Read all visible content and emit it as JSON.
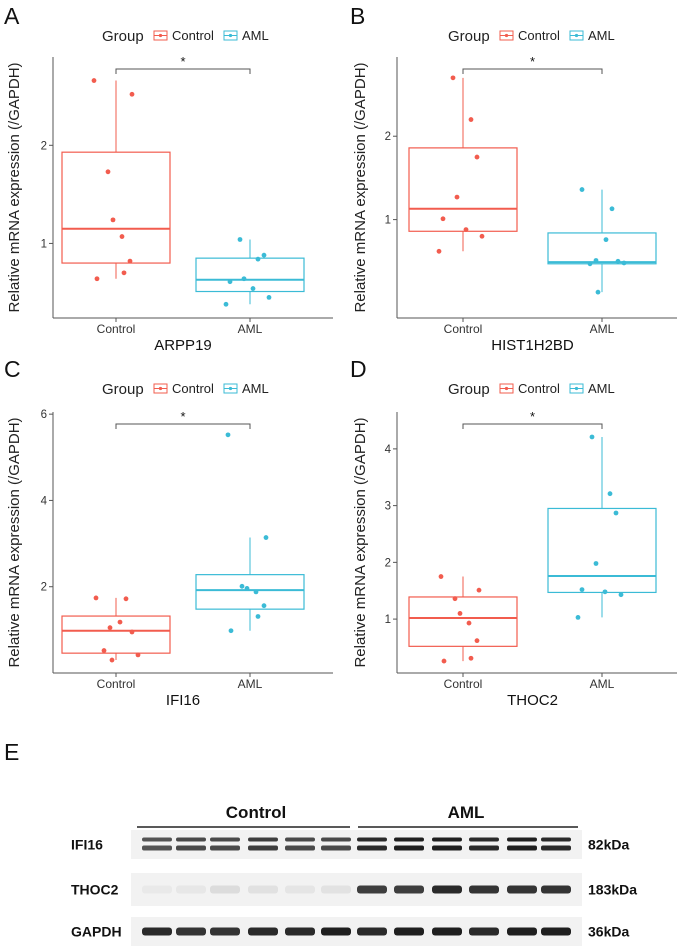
{
  "colors": {
    "control": "#F25C4E",
    "aml": "#3BBBD6",
    "axis": "#555555",
    "band": "#1f1f1f"
  },
  "legend": {
    "title": "Group",
    "entries": [
      "Control",
      "AML"
    ]
  },
  "chart_data": [
    {
      "letter": "A",
      "type": "box",
      "xlabel": "ARPP19",
      "ylabel": "Relative mRNA expression (/GAPDH)",
      "categories": [
        "Control",
        "AML"
      ],
      "ylim": [
        0.24,
        2.9
      ],
      "yticks": [
        1,
        2
      ],
      "significance": "*",
      "series": [
        {
          "name": "Control",
          "values": [
            2.66,
            2.52,
            1.73,
            1.24,
            1.07,
            0.82,
            0.7,
            0.64
          ],
          "box": {
            "q1": 0.8,
            "median": 1.15,
            "q3": 1.93,
            "whisker_low": 0.64,
            "whisker_high": 2.66
          }
        },
        {
          "name": "AML",
          "values": [
            1.04,
            0.84,
            0.88,
            0.64,
            0.61,
            0.54,
            0.45,
            0.38
          ],
          "box": {
            "q1": 0.51,
            "median": 0.63,
            "q3": 0.85,
            "whisker_low": 0.38,
            "whisker_high": 1.04
          }
        }
      ]
    },
    {
      "letter": "B",
      "type": "box",
      "xlabel": "HIST1H2BD",
      "ylabel": "Relative mRNA expression (/GAPDH)",
      "categories": [
        "Control",
        "AML"
      ],
      "ylim": [
        -0.18,
        2.95
      ],
      "yticks": [
        1,
        2
      ],
      "significance": "*",
      "series": [
        {
          "name": "Control",
          "values": [
            2.7,
            2.2,
            1.75,
            1.27,
            1.01,
            0.88,
            0.8,
            0.62
          ],
          "box": {
            "q1": 0.86,
            "median": 1.13,
            "q3": 1.86,
            "whisker_low": 0.62,
            "whisker_high": 2.7
          }
        },
        {
          "name": "AML",
          "values": [
            1.36,
            1.13,
            0.76,
            0.51,
            0.5,
            0.47,
            0.48,
            0.13
          ],
          "box": {
            "q1": 0.47,
            "median": 0.49,
            "q3": 0.84,
            "whisker_low": 0.13,
            "whisker_high": 1.36
          }
        }
      ]
    },
    {
      "letter": "C",
      "type": "box",
      "xlabel": "IFI16",
      "ylabel": "Relative mRNA expression (/GAPDH)",
      "categories": [
        "Control",
        "AML"
      ],
      "ylim": [
        0,
        6.05
      ],
      "yticks": [
        2,
        4,
        6
      ],
      "significance": "*",
      "series": [
        {
          "name": "Control",
          "values": [
            1.74,
            1.72,
            1.18,
            1.05,
            0.95,
            0.52,
            0.42,
            0.3
          ],
          "box": {
            "q1": 0.46,
            "median": 0.98,
            "q3": 1.32,
            "whisker_low": 0.3,
            "whisker_high": 1.74
          }
        },
        {
          "name": "AML",
          "values": [
            5.52,
            3.14,
            2.01,
            1.96,
            1.88,
            1.56,
            1.31,
            0.98
          ],
          "box": {
            "q1": 1.48,
            "median": 1.92,
            "q3": 2.28,
            "whisker_low": 0.98,
            "whisker_high": 3.14
          }
        }
      ]
    },
    {
      "letter": "D",
      "type": "box",
      "xlabel": "THOC2",
      "ylabel": "Relative mRNA expression (/GAPDH)",
      "categories": [
        "Control",
        "AML"
      ],
      "ylim": [
        0.05,
        4.65
      ],
      "yticks": [
        1,
        2,
        3,
        4
      ],
      "significance": "*",
      "series": [
        {
          "name": "Control",
          "values": [
            1.75,
            1.51,
            1.36,
            1.1,
            0.93,
            0.62,
            0.31,
            0.26
          ],
          "box": {
            "q1": 0.52,
            "median": 1.02,
            "q3": 1.39,
            "whisker_low": 0.26,
            "whisker_high": 1.75
          }
        },
        {
          "name": "AML",
          "values": [
            4.21,
            3.21,
            2.87,
            1.98,
            1.52,
            1.48,
            1.43,
            1.03
          ],
          "box": {
            "q1": 1.47,
            "median": 1.76,
            "q3": 2.95,
            "whisker_low": 1.03,
            "whisker_high": 4.21
          }
        }
      ]
    }
  ],
  "blot": {
    "letter": "E",
    "groups": [
      "Control",
      "AML"
    ],
    "rows": [
      {
        "protein": "IFI16",
        "size": "82kDa",
        "intensity": [
          0.75,
          0.8,
          0.8,
          0.85,
          0.8,
          0.8,
          0.95,
          1.0,
          1.0,
          0.95,
          1.0,
          0.95
        ]
      },
      {
        "protein": "THOC2",
        "size": "183kDa",
        "intensity": [
          0.04,
          0.05,
          0.1,
          0.08,
          0.06,
          0.07,
          0.85,
          0.85,
          0.95,
          0.9,
          0.9,
          0.9
        ]
      },
      {
        "protein": "GAPDH",
        "size": "36kDa",
        "intensity": [
          0.95,
          0.9,
          0.9,
          0.95,
          0.95,
          1.0,
          0.95,
          1.0,
          1.0,
          0.95,
          1.0,
          1.0
        ]
      }
    ]
  }
}
